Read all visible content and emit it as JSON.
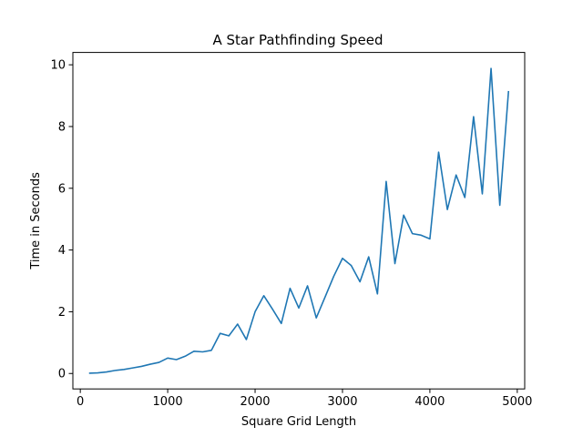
{
  "chart_data": {
    "type": "line",
    "title": "A Star Pathfinding Speed",
    "xlabel": "Square Grid Length",
    "ylabel": "Time in Seconds",
    "xlim": [
      -85,
      5085
    ],
    "ylim": [
      -0.5,
      10.4
    ],
    "xticks": [
      0,
      1000,
      2000,
      3000,
      4000,
      5000
    ],
    "xtick_labels": [
      "0",
      "1000",
      "2000",
      "3000",
      "4000",
      "5000"
    ],
    "yticks": [
      0,
      2,
      4,
      6,
      8,
      10
    ],
    "ytick_labels": [
      "0",
      "2",
      "4",
      "6",
      "8",
      "10"
    ],
    "grid": false,
    "color": "#1f77b4",
    "series": [
      {
        "x": [
          100,
          200,
          300,
          400,
          500,
          600,
          700,
          800,
          900,
          1000,
          1100,
          1200,
          1300,
          1400,
          1500,
          1600,
          1700,
          1800,
          1900,
          2000,
          2100,
          2200,
          2300,
          2400,
          2500,
          2600,
          2700,
          2800,
          2900,
          3000,
          3100,
          3200,
          3300,
          3400,
          3500,
          3600,
          3700,
          3800,
          3900,
          4000,
          4100,
          4200,
          4300,
          4400,
          4500,
          4600,
          4700,
          4800,
          4900
        ],
        "y": [
          0.01,
          0.02,
          0.05,
          0.1,
          0.13,
          0.18,
          0.23,
          0.3,
          0.36,
          0.5,
          0.45,
          0.56,
          0.72,
          0.7,
          0.75,
          1.3,
          1.22,
          1.6,
          1.1,
          2.0,
          2.52,
          2.08,
          1.62,
          2.76,
          2.12,
          2.84,
          1.8,
          2.47,
          3.15,
          3.73,
          3.5,
          2.97,
          3.78,
          2.58,
          6.22,
          3.56,
          5.13,
          4.53,
          4.48,
          4.36,
          7.17,
          5.31,
          6.43,
          5.7,
          8.32,
          5.82,
          9.88,
          5.45,
          9.15
        ]
      }
    ]
  }
}
